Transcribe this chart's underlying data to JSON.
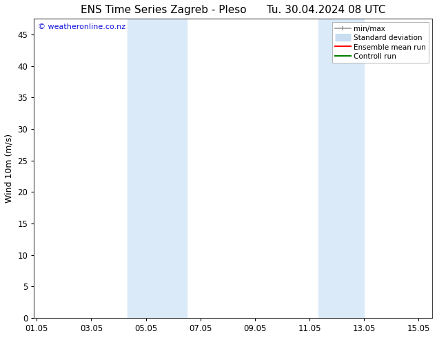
{
  "title_left": "ENS Time Series Zagreb - Pleso",
  "title_right": "Tu. 30.04.2024 08 UTC",
  "ylabel": "Wind 10m (m/s)",
  "watermark": "© weatheronline.co.nz",
  "x_tick_labels": [
    "01.05",
    "03.05",
    "05.05",
    "07.05",
    "09.05",
    "11.05",
    "13.05",
    "15.05"
  ],
  "x_tick_positions": [
    0,
    2,
    4,
    6,
    8,
    10,
    12,
    14
  ],
  "ylim": [
    0,
    47.5
  ],
  "yticks": [
    0,
    5,
    10,
    15,
    20,
    25,
    30,
    35,
    40,
    45
  ],
  "xlim": [
    -0.1,
    14.5
  ],
  "background_color": "#ffffff",
  "plot_bg_color": "#ffffff",
  "shaded_bands": [
    {
      "x_start": 3.33,
      "x_end": 4.0,
      "color": "#daeaf8"
    },
    {
      "x_start": 4.0,
      "x_end": 5.5,
      "color": "#daeaf8"
    },
    {
      "x_start": 10.33,
      "x_end": 11.0,
      "color": "#daeaf8"
    },
    {
      "x_start": 11.0,
      "x_end": 12.0,
      "color": "#daeaf8"
    }
  ],
  "legend_items": [
    {
      "label": "min/max",
      "color": "#aaaaaa",
      "lw": 1.2,
      "style": "solid",
      "type": "line_with_caps"
    },
    {
      "label": "Standard deviation",
      "color": "#c8ddf0",
      "lw": 8,
      "style": "solid",
      "type": "bar"
    },
    {
      "label": "Ensemble mean run",
      "color": "#ff0000",
      "lw": 1.5,
      "style": "solid",
      "type": "line"
    },
    {
      "label": "Controll run",
      "color": "#008000",
      "lw": 1.5,
      "style": "solid",
      "type": "line"
    }
  ],
  "watermark_color": "#1515dd",
  "title_fontsize": 11,
  "axis_fontsize": 9,
  "tick_fontsize": 8.5,
  "watermark_fontsize": 8,
  "legend_fontsize": 7.5
}
